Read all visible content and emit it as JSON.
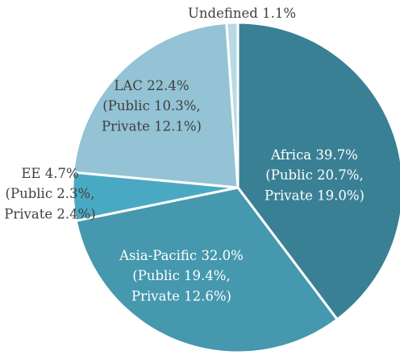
{
  "chart_data": {
    "type": "pie",
    "categories": [
      "Africa",
      "Asia-Pacific",
      "EE",
      "LAC",
      "Undefined"
    ],
    "values": [
      39.7,
      32.0,
      4.7,
      22.4,
      1.1
    ],
    "value_labels": [
      "39.7%",
      "32.0%",
      "4.7%",
      "22.4%",
      "1.1%"
    ],
    "breakdown_labels": [
      [
        "(Public 20.7%,",
        "Private 19.0%)"
      ],
      [
        "(Public 19.4%,",
        "Private 12.6%)"
      ],
      [
        "(Public 2.3%,",
        "Private 2.4%)"
      ],
      [
        "(Public 10.3%,",
        "Private 12.1%)"
      ],
      null
    ],
    "colors": [
      "#3a8095",
      "#4598ad",
      "#4aa9c2",
      "#93c3d4",
      "#b8dae5"
    ],
    "label_colors": [
      "#ffffff",
      "#ffffff",
      "#404040",
      "#404040",
      "#404040"
    ],
    "start_angle": 0,
    "direction": "clockwise"
  }
}
